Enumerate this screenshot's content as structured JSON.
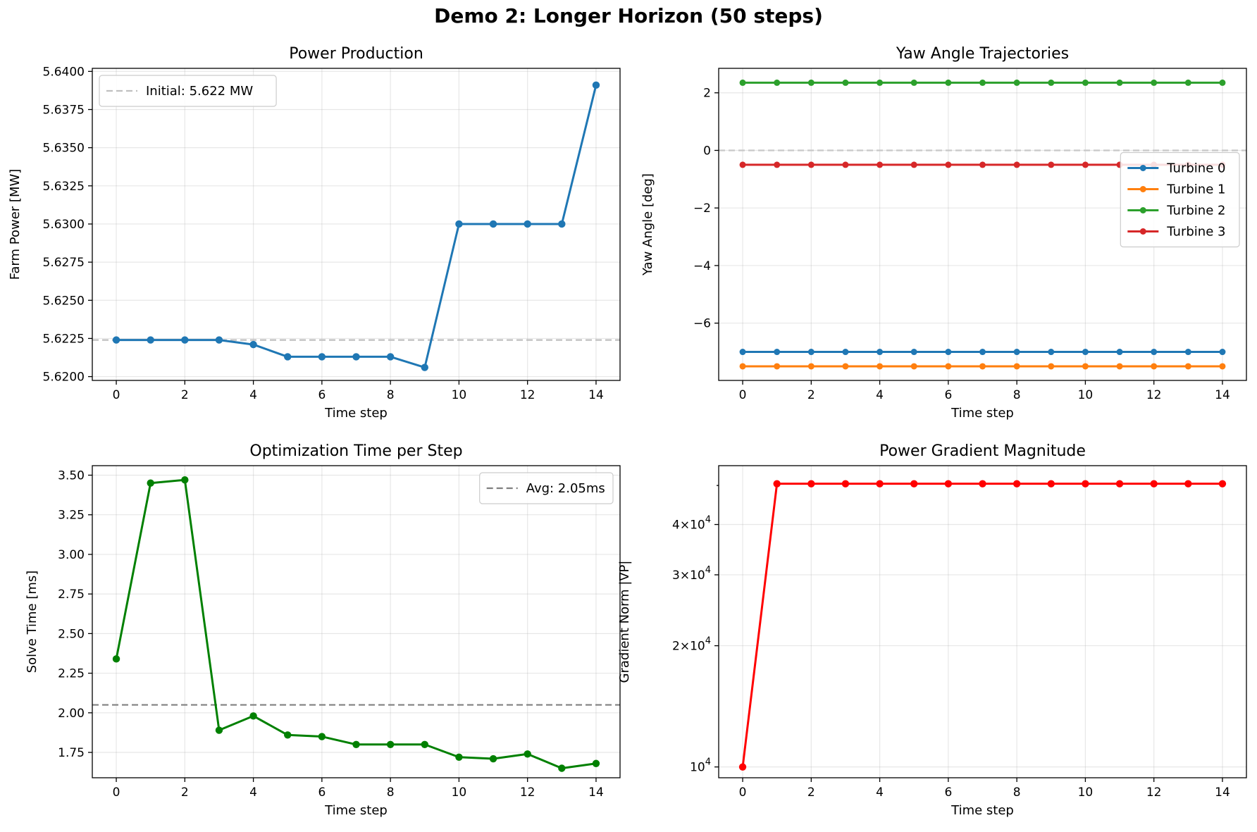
{
  "figure": {
    "title": "Demo 2: Longer Horizon (50 steps)"
  },
  "chart_data": [
    {
      "id": "power",
      "type": "line",
      "title": "Power Production",
      "xlabel": "Time step",
      "ylabel": "Farm Power [MW]",
      "xlim": [
        -0.7,
        14.7
      ],
      "ylim": [
        5.61975,
        5.6402
      ],
      "xticks": [
        0,
        2,
        4,
        6,
        8,
        10,
        12,
        14
      ],
      "yticks": [
        5.62,
        5.6225,
        5.625,
        5.6275,
        5.63,
        5.6325,
        5.635,
        5.6375,
        5.64
      ],
      "ytick_labels": [
        "5.6200",
        "5.6225",
        "5.6250",
        "5.6275",
        "5.6300",
        "5.6325",
        "5.6350",
        "5.6375",
        "5.6400"
      ],
      "grid": true,
      "legend_position": "top-left",
      "x": [
        0,
        1,
        2,
        3,
        4,
        5,
        6,
        7,
        8,
        9,
        10,
        11,
        12,
        13,
        14
      ],
      "series": [
        {
          "values": [
            5.6224,
            5.6224,
            5.6224,
            5.6224,
            5.6221,
            5.6213,
            5.6213,
            5.6213,
            5.6213,
            5.6206,
            5.63,
            5.63,
            5.63,
            5.63,
            5.6391
          ],
          "color": "#1f77b4"
        }
      ],
      "hlines": [
        {
          "name": "Initial: 5.622 MW",
          "y": 5.6224,
          "color": "#bfbfbf"
        }
      ]
    },
    {
      "id": "yaw",
      "type": "line",
      "title": "Yaw Angle Trajectories",
      "xlabel": "Time step",
      "ylabel": "Yaw Angle [deg]",
      "xlim": [
        -0.7,
        14.7
      ],
      "ylim": [
        -7.99,
        2.85
      ],
      "xticks": [
        0,
        2,
        4,
        6,
        8,
        10,
        12,
        14
      ],
      "yticks": [
        -6,
        -4,
        -2,
        0,
        2
      ],
      "ytick_labels": [
        "−6",
        "−4",
        "−2",
        "0",
        "2"
      ],
      "grid": true,
      "legend_position": "center-right",
      "x": [
        0,
        1,
        2,
        3,
        4,
        5,
        6,
        7,
        8,
        9,
        10,
        11,
        12,
        13,
        14
      ],
      "series": [
        {
          "name": "Turbine 0",
          "color": "#1f77b4",
          "values": [
            -7.0,
            -7.0,
            -7.0,
            -7.0,
            -7.0,
            -7.0,
            -7.0,
            -7.0,
            -7.0,
            -7.0,
            -7.0,
            -7.0,
            -7.0,
            -7.0,
            -7.0
          ]
        },
        {
          "name": "Turbine 1",
          "color": "#ff7f0e",
          "values": [
            -7.5,
            -7.5,
            -7.5,
            -7.5,
            -7.5,
            -7.5,
            -7.5,
            -7.5,
            -7.5,
            -7.5,
            -7.5,
            -7.5,
            -7.5,
            -7.5,
            -7.5
          ]
        },
        {
          "name": "Turbine 2",
          "color": "#2ca02c",
          "values": [
            2.35,
            2.35,
            2.35,
            2.35,
            2.35,
            2.35,
            2.35,
            2.35,
            2.35,
            2.35,
            2.35,
            2.35,
            2.35,
            2.35,
            2.35
          ]
        },
        {
          "name": "Turbine 3",
          "color": "#d62728",
          "values": [
            -0.5,
            -0.5,
            -0.5,
            -0.5,
            -0.5,
            -0.5,
            -0.5,
            -0.5,
            -0.5,
            -0.5,
            -0.5,
            -0.5,
            -0.5,
            -0.5,
            -0.5
          ]
        }
      ],
      "hlines": [
        {
          "y": 0,
          "color": "#c8c8c8"
        }
      ]
    },
    {
      "id": "solve",
      "type": "line",
      "title": "Optimization Time per Step",
      "xlabel": "Time step",
      "ylabel": "Solve Time [ms]",
      "xlim": [
        -0.7,
        14.7
      ],
      "ylim": [
        1.59,
        3.56
      ],
      "xticks": [
        0,
        2,
        4,
        6,
        8,
        10,
        12,
        14
      ],
      "yticks": [
        1.75,
        2.0,
        2.25,
        2.5,
        2.75,
        3.0,
        3.25,
        3.5
      ],
      "ytick_labels": [
        "1.75",
        "2.00",
        "2.25",
        "2.50",
        "2.75",
        "3.00",
        "3.25",
        "3.50"
      ],
      "grid": true,
      "legend_position": "top-right",
      "x": [
        0,
        1,
        2,
        3,
        4,
        5,
        6,
        7,
        8,
        9,
        10,
        11,
        12,
        13,
        14
      ],
      "series": [
        {
          "values": [
            2.34,
            3.45,
            3.47,
            1.89,
            1.98,
            1.86,
            1.85,
            1.8,
            1.8,
            1.8,
            1.72,
            1.71,
            1.74,
            1.65,
            1.68
          ],
          "color": "#008000"
        }
      ],
      "hlines": [
        {
          "name": "Avg: 2.05ms",
          "y": 2.05,
          "color": "#808080"
        }
      ]
    },
    {
      "id": "grad",
      "type": "line",
      "title": "Power Gradient Magnitude",
      "xlabel": "Time step",
      "ylabel": "Gradient Norm |∇P|",
      "yscale": "log",
      "xlim": [
        -0.7,
        14.7
      ],
      "ylim": [
        9400,
        56000
      ],
      "xticks": [
        0,
        2,
        4,
        6,
        8,
        10,
        12,
        14
      ],
      "yticks": [
        10000,
        20000,
        30000,
        40000
      ],
      "ytick_labels": [
        "10^4",
        "2×10^4",
        "3×10^4",
        "4×10^4"
      ],
      "grid": true,
      "x": [
        0,
        1,
        2,
        3,
        4,
        5,
        6,
        7,
        8,
        9,
        10,
        11,
        12,
        13,
        14
      ],
      "series": [
        {
          "values": [
            10000,
            50500,
            50500,
            50500,
            50500,
            50500,
            50500,
            50500,
            50500,
            50500,
            50500,
            50500,
            50500,
            50500,
            50500
          ],
          "color": "#ff0000"
        }
      ]
    }
  ]
}
